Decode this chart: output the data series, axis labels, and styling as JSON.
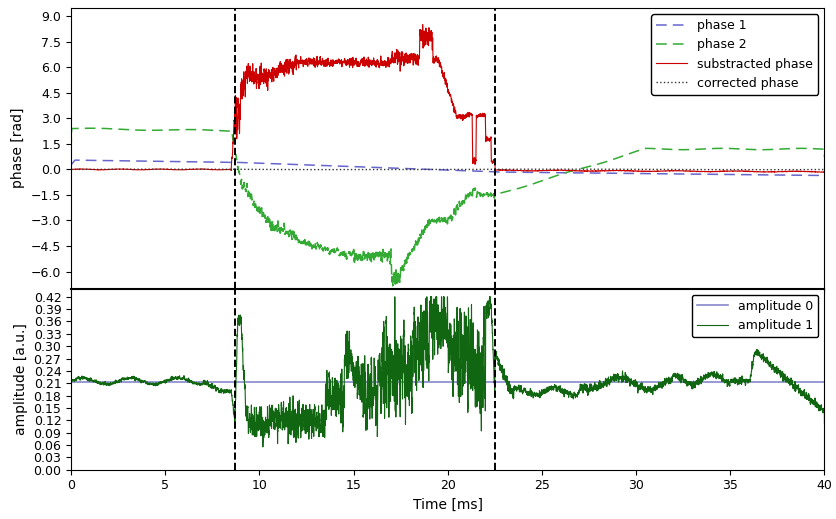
{
  "xlim": [
    0,
    40
  ],
  "xlabel": "Time [ms]",
  "phase_ylim": [
    -7.0,
    9.5
  ],
  "phase_yticks": [
    -6.0,
    -4.5,
    -3.0,
    -1.5,
    0.0,
    1.5,
    3.0,
    4.5,
    6.0,
    7.5,
    9.0
  ],
  "phase_ylabel": "phase [rad]",
  "amp_ylim": [
    0.0,
    0.44
  ],
  "amp_yticks": [
    0.0,
    0.03,
    0.06,
    0.09,
    0.12,
    0.15,
    0.18,
    0.21,
    0.24,
    0.27,
    0.3,
    0.33,
    0.36,
    0.39,
    0.42
  ],
  "amp_ylabel": "amplitude [a.u.]",
  "vline1": 8.7,
  "vline2": 22.5,
  "phase1_color": "#6666cc",
  "phase2_color": "#33aa33",
  "substracted_color": "#cc0000",
  "corrected_color": "#333333",
  "amp0_color": "#8888cc",
  "amp1_color": "#116611",
  "bg_color": "#ffffff",
  "legend_fontsize": 9,
  "tick_fontsize": 9,
  "label_fontsize": 10
}
